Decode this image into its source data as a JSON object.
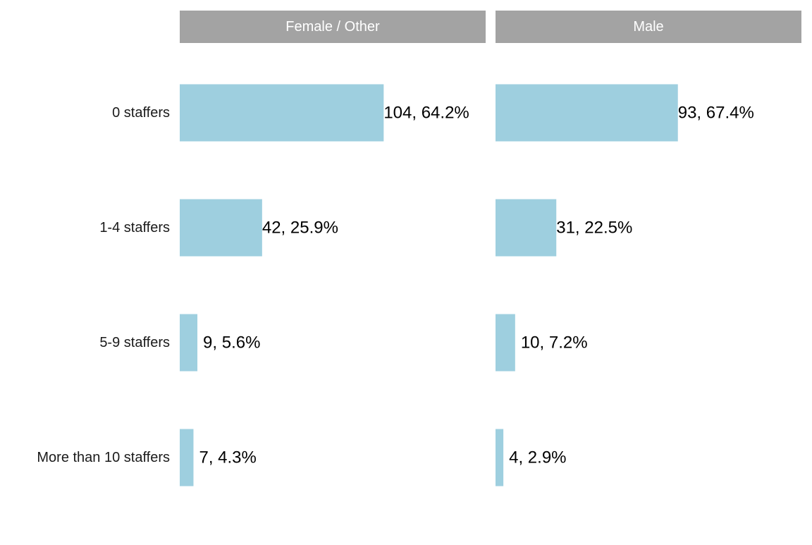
{
  "chart_data": {
    "type": "bar",
    "orientation": "horizontal",
    "facet_style": "small-multiples",
    "categories": [
      "0 staffers",
      "1-4 staffers",
      "5-9 staffers",
      "More than 10 staffers"
    ],
    "panels": [
      {
        "title": "Female / Other",
        "values": [
          104,
          42,
          9,
          7
        ],
        "labels": [
          "104, 64.2%",
          "42, 25.9%",
          "9, 5.6%",
          "7, 4.3%"
        ]
      },
      {
        "title": "Male",
        "values": [
          93,
          31,
          10,
          4
        ],
        "labels": [
          "93, 67.4%",
          "31, 22.5%",
          "10, 7.2%",
          "4, 2.9%"
        ]
      }
    ],
    "xlim": [
      0,
      156
    ],
    "grid": false,
    "legend": "none",
    "colors": {
      "bar": "#9ecfdf",
      "strip_background": "#a3a3a3",
      "strip_text": "#ffffff",
      "category_text": "#1a1a1a",
      "value_label_text": "#000000"
    }
  }
}
